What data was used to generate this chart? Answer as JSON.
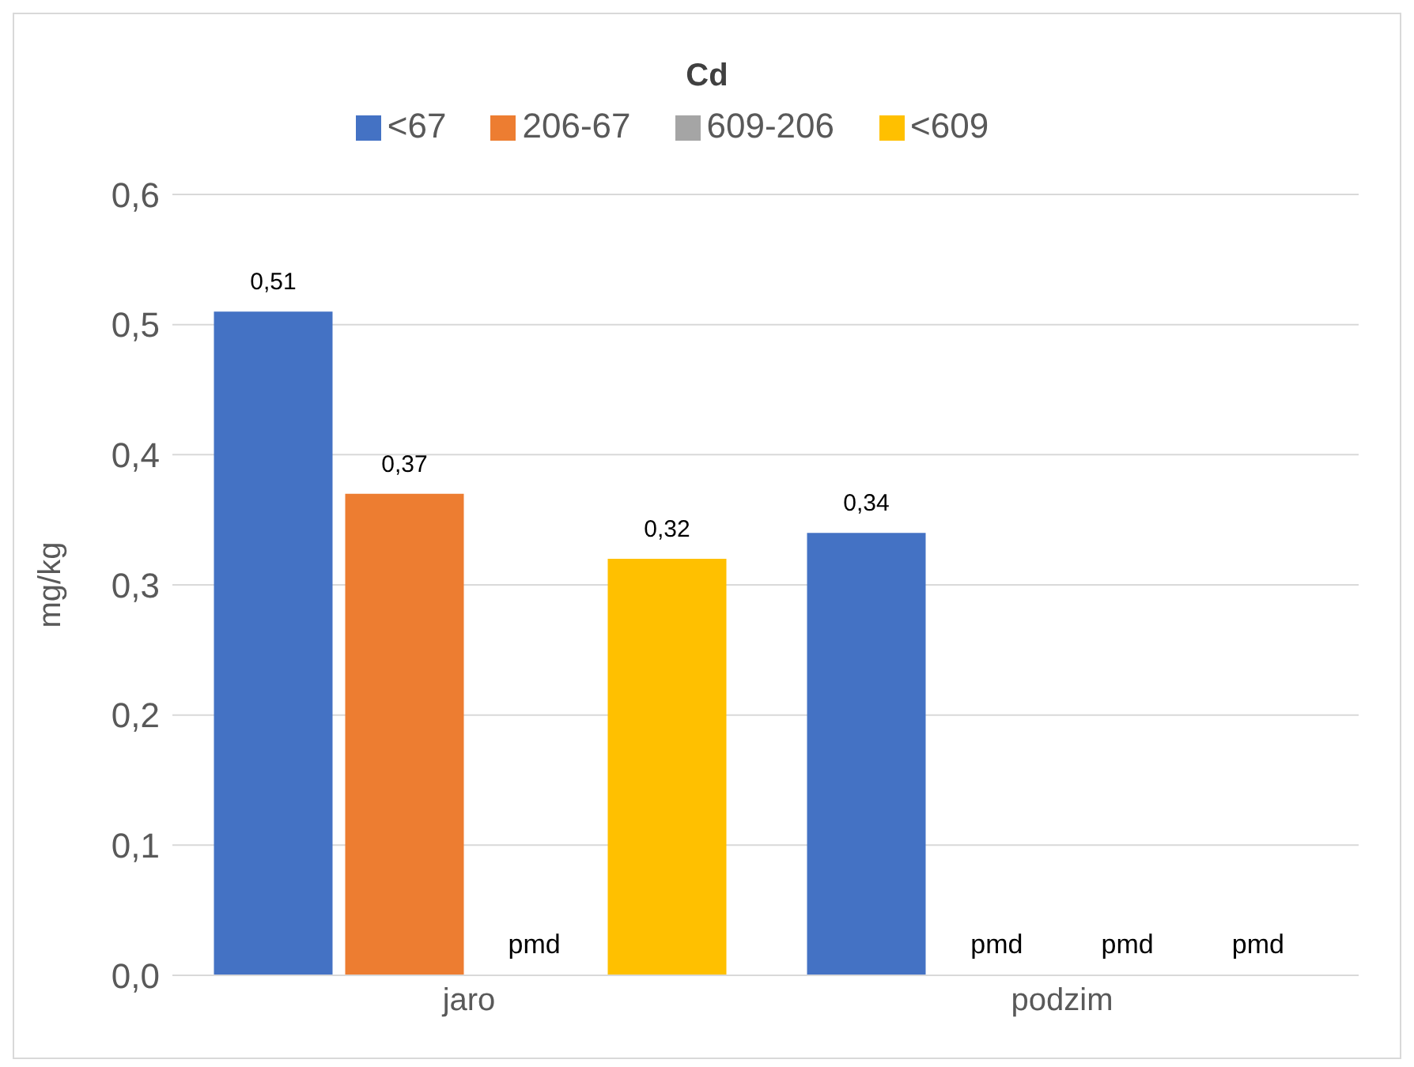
{
  "chart_data": {
    "type": "bar",
    "title": "Cd",
    "ylabel": "mg/kg",
    "categories": [
      "jaro",
      "podzim"
    ],
    "series": [
      {
        "name": "<67",
        "color": "#4472c4",
        "values": [
          0.51,
          0.34
        ],
        "value_labels": [
          "0,51",
          "0,34"
        ]
      },
      {
        "name": "206-67",
        "color": "#ed7d31",
        "values": [
          0.37,
          null
        ],
        "value_labels": [
          "0,37",
          "pmd"
        ]
      },
      {
        "name": "609-206",
        "color": "#a5a5a5",
        "values": [
          null,
          null
        ],
        "value_labels": [
          "pmd",
          "pmd"
        ]
      },
      {
        "name": "<609",
        "color": "#ffc000",
        "values": [
          0.32,
          null
        ],
        "value_labels": [
          "0,32",
          "pmd"
        ]
      }
    ],
    "ylim": [
      0,
      0.6
    ],
    "yticks": [
      {
        "value": 0,
        "label": "0,0"
      },
      {
        "value": 0.1,
        "label": "0,1"
      },
      {
        "value": 0.2,
        "label": "0,2"
      },
      {
        "value": 0.3,
        "label": "0,3"
      },
      {
        "value": 0.4,
        "label": "0,4"
      },
      {
        "value": 0.5,
        "label": "0,5"
      },
      {
        "value": 0.6,
        "label": "0,6"
      }
    ],
    "grid": "y",
    "legend": "top"
  }
}
